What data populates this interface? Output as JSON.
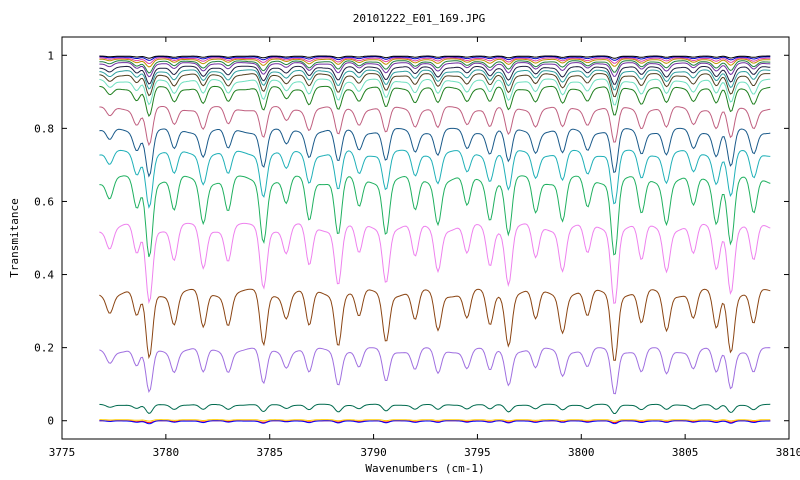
{
  "chart_data": {
    "type": "line",
    "title": "20101222_E01_169.JPG",
    "xlabel": "Wavenumbers (cm-1)",
    "ylabel": "Transmitance",
    "xlim": [
      3775,
      3810
    ],
    "ylim": [
      -0.05,
      1.05
    ],
    "x_ticks": [
      3775,
      3780,
      3785,
      3790,
      3795,
      3800,
      3805,
      3810
    ],
    "x_tick_labels": [
      "3775",
      "3780",
      "3785",
      "3790",
      "3795",
      "3800",
      "3805",
      "3810"
    ],
    "y_ticks": [
      0,
      0.2,
      0.4,
      0.6,
      0.8,
      1
    ],
    "y_tick_labels": [
      "0",
      "0.2",
      "0.4",
      "0.6",
      "0.8",
      "1"
    ],
    "grid": false,
    "legend": "none",
    "x_range": [
      3776.8,
      3809.1
    ],
    "absorption_lines": [
      {
        "x": 3777.3,
        "depth": 0.25
      },
      {
        "x": 3778.6,
        "depth": 0.4
      },
      {
        "x": 3779.2,
        "depth": 1.0
      },
      {
        "x": 3780.4,
        "depth": 0.45
      },
      {
        "x": 3781.8,
        "depth": 0.55
      },
      {
        "x": 3783.0,
        "depth": 0.45
      },
      {
        "x": 3784.7,
        "depth": 0.8
      },
      {
        "x": 3785.8,
        "depth": 0.35
      },
      {
        "x": 3786.9,
        "depth": 0.55
      },
      {
        "x": 3788.3,
        "depth": 0.75
      },
      {
        "x": 3789.3,
        "depth": 0.4
      },
      {
        "x": 3790.6,
        "depth": 0.7
      },
      {
        "x": 3792.0,
        "depth": 0.45
      },
      {
        "x": 3793.1,
        "depth": 0.55
      },
      {
        "x": 3794.5,
        "depth": 0.4
      },
      {
        "x": 3795.6,
        "depth": 0.5
      },
      {
        "x": 3796.5,
        "depth": 0.75
      },
      {
        "x": 3797.8,
        "depth": 0.45
      },
      {
        "x": 3799.1,
        "depth": 0.55
      },
      {
        "x": 3800.3,
        "depth": 0.4
      },
      {
        "x": 3801.6,
        "depth": 1.0
      },
      {
        "x": 3802.9,
        "depth": 0.5
      },
      {
        "x": 3804.1,
        "depth": 0.55
      },
      {
        "x": 3805.4,
        "depth": 0.4
      },
      {
        "x": 3806.5,
        "depth": 0.55
      },
      {
        "x": 3807.2,
        "depth": 0.85
      },
      {
        "x": 3808.3,
        "depth": 0.5
      }
    ],
    "series": [
      {
        "color": "#ff0000",
        "baseline": 0.0,
        "amplitude": 0.005
      },
      {
        "color": "#0000ff",
        "baseline": 0.0,
        "amplitude": 0.008
      },
      {
        "color": "#ffcc00",
        "baseline": 0.003,
        "amplitude": 0.004
      },
      {
        "color": "#006a4e",
        "baseline": 0.045,
        "amplitude": 0.025
      },
      {
        "color": "#a070e0",
        "baseline": 0.2,
        "amplitude": 0.12
      },
      {
        "color": "#8b4513",
        "baseline": 0.36,
        "amplitude": 0.18
      },
      {
        "color": "#ee82ee",
        "baseline": 0.54,
        "amplitude": 0.2
      },
      {
        "color": "#20b060",
        "baseline": 0.67,
        "amplitude": 0.2
      },
      {
        "color": "#20b0b8",
        "baseline": 0.74,
        "amplitude": 0.14
      },
      {
        "color": "#1a5a8a",
        "baseline": 0.8,
        "amplitude": 0.12
      },
      {
        "color": "#c06080",
        "baseline": 0.86,
        "amplitude": 0.1
      },
      {
        "color": "#208020",
        "baseline": 0.915,
        "amplitude": 0.08
      },
      {
        "color": "#70e0c0",
        "baseline": 0.935,
        "amplitude": 0.07
      },
      {
        "color": "#504020",
        "baseline": 0.95,
        "amplitude": 0.06
      },
      {
        "color": "#30a0a0",
        "baseline": 0.96,
        "amplitude": 0.05
      },
      {
        "color": "#202040",
        "baseline": 0.97,
        "amplitude": 0.045
      },
      {
        "color": "#7030a0",
        "baseline": 0.98,
        "amplitude": 0.035
      },
      {
        "color": "#208040",
        "baseline": 0.985,
        "amplitude": 0.03
      },
      {
        "color": "#c09000",
        "baseline": 0.99,
        "amplitude": 0.02
      },
      {
        "color": "#e040a0",
        "baseline": 0.993,
        "amplitude": 0.015
      },
      {
        "color": "#0000cc",
        "baseline": 0.996,
        "amplitude": 0.01
      },
      {
        "color": "#000000",
        "baseline": 0.998,
        "amplitude": 0.006
      }
    ]
  }
}
